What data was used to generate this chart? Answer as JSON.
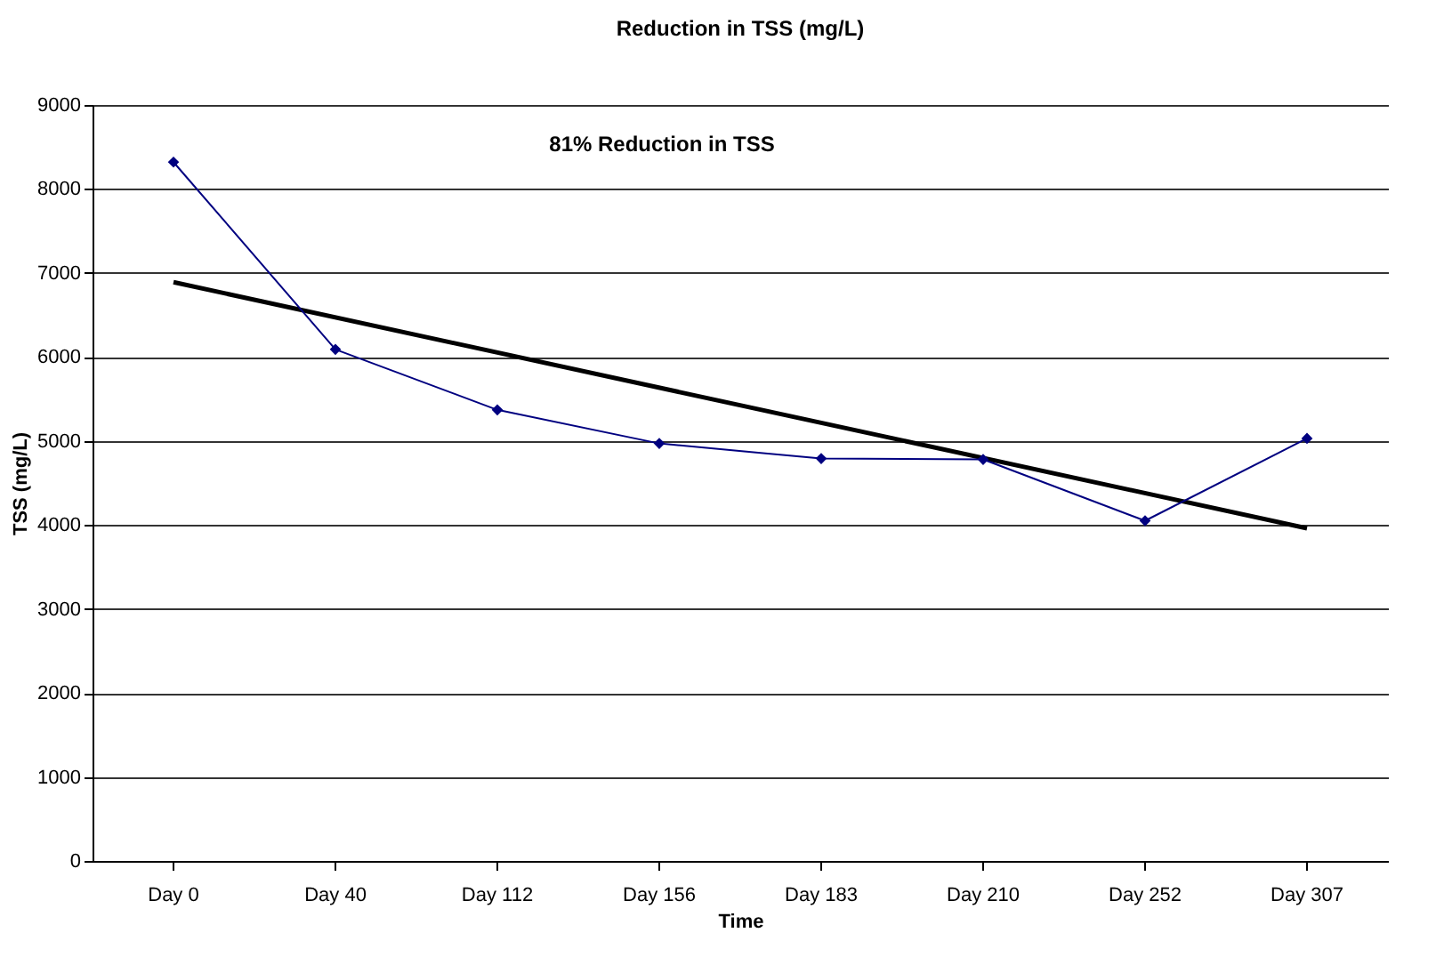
{
  "chart_data": {
    "type": "line",
    "title": "Reduction in TSS (mg/L)",
    "xlabel": "Time",
    "ylabel": "TSS (mg/L)",
    "categories": [
      "Day 0",
      "Day 40",
      "Day 112",
      "Day 156",
      "Day 183",
      "Day 210",
      "Day 252",
      "Day 307"
    ],
    "series": [
      {
        "color": "#000080",
        "marker": "diamond",
        "values": [
          8320,
          6090,
          5370,
          4970,
          4790,
          4780,
          4050,
          5030
        ]
      },
      {
        "type": "line",
        "color": "#000000",
        "marker": "none",
        "x": [
          "Day 0",
          "Day 307"
        ],
        "values": [
          6890,
          3960
        ]
      }
    ],
    "ylim": [
      0,
      9000
    ],
    "yticks": [
      0,
      1000,
      2000,
      3000,
      4000,
      5000,
      6000,
      7000,
      8000,
      9000
    ],
    "grid": "y",
    "annotations": [
      "81% Reduction in TSS"
    ]
  }
}
